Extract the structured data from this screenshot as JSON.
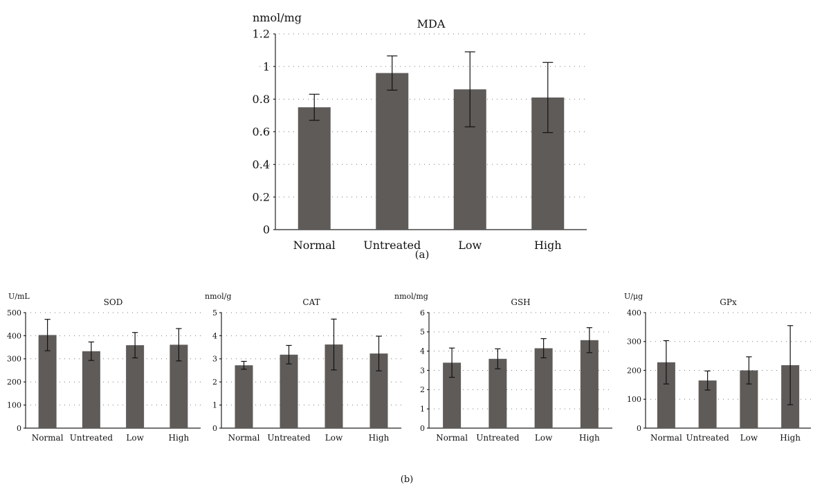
{
  "panel_labels": {
    "a": "(a)",
    "b": "(b)"
  },
  "chart_data": [
    {
      "type": "bar",
      "title": "MDA",
      "ylabel": "nmol/mg",
      "categories": [
        "Normal",
        "Untreated",
        "Low",
        "High"
      ],
      "values": [
        0.75,
        0.96,
        0.86,
        0.81
      ],
      "errors": [
        0.08,
        0.105,
        0.23,
        0.215
      ],
      "ylim": [
        0,
        1.2
      ],
      "yticks": [
        "0",
        "0.2",
        "0.4",
        "0.6",
        "0.8",
        "1",
        "1.2"
      ],
      "grid": true,
      "bar_color": "#5f5b59"
    },
    {
      "type": "bar",
      "title": "SOD",
      "ylabel": "U/mL",
      "categories": [
        "Normal",
        "Untreated",
        "Low",
        "High"
      ],
      "values": [
        403,
        333,
        359,
        361
      ],
      "errors": [
        68,
        40,
        55,
        70
      ],
      "ylim": [
        0,
        500
      ],
      "yticks": [
        "0",
        "100",
        "200",
        "300",
        "400",
        "500"
      ],
      "grid": true,
      "bar_color": "#5f5b59"
    },
    {
      "type": "bar",
      "title": "CAT",
      "ylabel": "nmol/g",
      "categories": [
        "Normal",
        "Untreated",
        "Low",
        "High"
      ],
      "values": [
        2.72,
        3.18,
        3.62,
        3.23
      ],
      "errors": [
        0.17,
        0.4,
        1.1,
        0.75
      ],
      "ylim": [
        0,
        5
      ],
      "yticks": [
        "0",
        "1",
        "2",
        "3",
        "4",
        "5"
      ],
      "grid": true,
      "bar_color": "#5f5b59"
    },
    {
      "type": "bar",
      "title": "GSH",
      "ylabel": "nmol/mg",
      "categories": [
        "Normal",
        "Untreated",
        "Low",
        "High"
      ],
      "values": [
        3.4,
        3.6,
        4.15,
        4.57
      ],
      "errors": [
        0.76,
        0.52,
        0.5,
        0.65
      ],
      "ylim": [
        0,
        6
      ],
      "yticks": [
        "0",
        "1",
        "2",
        "3",
        "4",
        "5",
        "6"
      ],
      "grid": true,
      "bar_color": "#5f5b59"
    },
    {
      "type": "bar",
      "title": "GPx",
      "ylabel": "U/μg",
      "categories": [
        "Normal",
        "Untreated",
        "Low",
        "High"
      ],
      "values": [
        228,
        165,
        200,
        218
      ],
      "errors": [
        75,
        33,
        47,
        137
      ],
      "ylim": [
        0,
        400
      ],
      "yticks": [
        "0",
        "100",
        "200",
        "300",
        "400"
      ],
      "grid": true,
      "bar_color": "#5f5b59"
    }
  ]
}
